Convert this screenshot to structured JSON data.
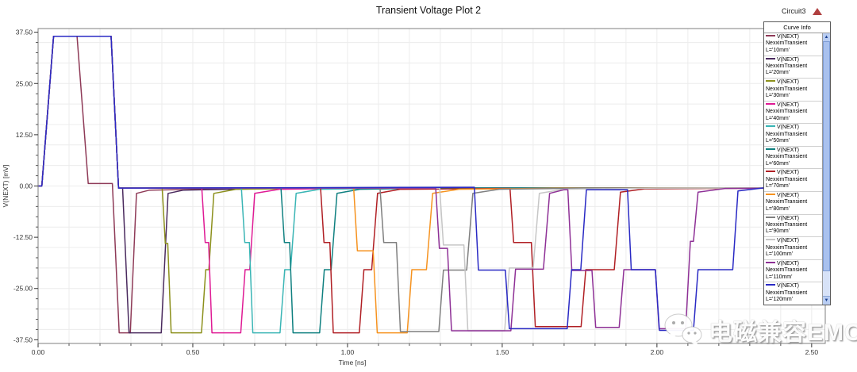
{
  "window": {
    "project_label": "Circuit3",
    "warning_icon": "red-triangle-icon"
  },
  "watermark": {
    "text": "电磁兼容EMC",
    "icon": "wechat-icon"
  },
  "legend": {
    "title": "Curve Info",
    "scrollbar": {
      "up_icon": "▲",
      "down_icon": "▼"
    }
  },
  "chart_data": {
    "type": "line",
    "title": "Transient Voltage Plot 2",
    "xlabel": "Time [ns]",
    "ylabel": "V(NEXT) [mV]",
    "xlim": [
      0,
      2.544
    ],
    "ylim": [
      -38.4,
      38.4
    ],
    "grid": true,
    "grid_x_step": 0.1,
    "grid_y_step": 5,
    "legend_position": "right-overlay",
    "x_ticks": [
      {
        "v": 0.0,
        "label": "0.00"
      },
      {
        "v": 0.5,
        "label": "0.50"
      },
      {
        "v": 1.0,
        "label": "1.00"
      },
      {
        "v": 1.5,
        "label": "1.50"
      },
      {
        "v": 2.0,
        "label": "2.00"
      },
      {
        "v": 2.5,
        "label": "2.50"
      }
    ],
    "x_minor_step": 0.1,
    "y_ticks": [
      {
        "v": 37.5,
        "label": "37.50"
      },
      {
        "v": 25.0,
        "label": "25.00"
      },
      {
        "v": 12.5,
        "label": "12.50"
      },
      {
        "v": 0.0,
        "label": "0.00"
      },
      {
        "v": -12.5,
        "label": "-12.50"
      },
      {
        "v": -25.0,
        "label": "-25.00"
      },
      {
        "v": -37.5,
        "label": "-37.50"
      }
    ],
    "y_minor_step": 2.5,
    "series": [
      {
        "name": "V(NEXT)",
        "solver": "NexximTransient",
        "length": "L='10mm'",
        "color": "#8e3a57",
        "points": [
          [
            0,
            0
          ],
          [
            0.012,
            0
          ],
          [
            0.05,
            36.5
          ],
          [
            0.126,
            36.5
          ],
          [
            0.162,
            0.6
          ],
          [
            0.24,
            0.6
          ],
          [
            0.262,
            -35.8
          ],
          [
            0.298,
            -35.8
          ],
          [
            0.318,
            -1.8
          ],
          [
            0.36,
            -1
          ],
          [
            0.75,
            -0.5
          ],
          [
            2.544,
            -0.45
          ]
        ]
      },
      {
        "name": "V(NEXT)",
        "solver": "NexximTransient",
        "length": "L='20mm'",
        "color": "#4a2a5e",
        "points": [
          [
            0,
            0
          ],
          [
            0.012,
            0
          ],
          [
            0.05,
            36.5
          ],
          [
            0.236,
            36.5
          ],
          [
            0.26,
            -0.5
          ],
          [
            0.273,
            -0.5
          ],
          [
            0.294,
            -35.8
          ],
          [
            0.398,
            -35.8
          ],
          [
            0.42,
            -1.8
          ],
          [
            0.47,
            -1
          ],
          [
            0.85,
            -0.5
          ],
          [
            2.544,
            -0.45
          ]
        ]
      },
      {
        "name": "V(NEXT)",
        "solver": "NexximTransient",
        "length": "L='30mm'",
        "color": "#8c901c",
        "points": [
          [
            0,
            0
          ],
          [
            0.012,
            0
          ],
          [
            0.05,
            36.5
          ],
          [
            0.236,
            36.5
          ],
          [
            0.26,
            -0.5
          ],
          [
            0.401,
            -0.5
          ],
          [
            0.411,
            -14
          ],
          [
            0.419,
            -14
          ],
          [
            0.43,
            -35.8
          ],
          [
            0.528,
            -35.8
          ],
          [
            0.542,
            -20.4
          ],
          [
            0.552,
            -20.4
          ],
          [
            0.568,
            -1.8
          ],
          [
            0.64,
            -0.8
          ],
          [
            1,
            -0.5
          ],
          [
            2.544,
            -0.45
          ]
        ]
      },
      {
        "name": "V(NEXT)",
        "solver": "NexximTransient",
        "length": "L='40mm'",
        "color": "#df1a94",
        "points": [
          [
            0,
            0
          ],
          [
            0.012,
            0
          ],
          [
            0.05,
            36.5
          ],
          [
            0.236,
            36.5
          ],
          [
            0.26,
            -0.5
          ],
          [
            0.529,
            -0.5
          ],
          [
            0.54,
            -13.8
          ],
          [
            0.551,
            -13.8
          ],
          [
            0.562,
            -35.8
          ],
          [
            0.655,
            -35.8
          ],
          [
            0.669,
            -20.4
          ],
          [
            0.684,
            -20.4
          ],
          [
            0.7,
            -1.8
          ],
          [
            0.78,
            -0.8
          ],
          [
            1.1,
            -0.5
          ],
          [
            2.544,
            -0.45
          ]
        ]
      },
      {
        "name": "V(NEXT)",
        "solver": "NexximTransient",
        "length": "L='50mm'",
        "color": "#3ab5b5",
        "points": [
          [
            0,
            0
          ],
          [
            0.012,
            0
          ],
          [
            0.05,
            36.5
          ],
          [
            0.236,
            36.5
          ],
          [
            0.26,
            -0.5
          ],
          [
            0.657,
            -0.5
          ],
          [
            0.668,
            -13.8
          ],
          [
            0.683,
            -13.8
          ],
          [
            0.694,
            -35.8
          ],
          [
            0.782,
            -35.8
          ],
          [
            0.797,
            -20.4
          ],
          [
            0.816,
            -20.4
          ],
          [
            0.834,
            -1.8
          ],
          [
            0.91,
            -0.8
          ],
          [
            1.2,
            -0.5
          ],
          [
            2.544,
            -0.45
          ]
        ]
      },
      {
        "name": "V(NEXT)",
        "solver": "NexximTransient",
        "length": "L='60mm'",
        "color": "#0f8080",
        "points": [
          [
            0,
            0
          ],
          [
            0.012,
            0
          ],
          [
            0.05,
            36.5
          ],
          [
            0.236,
            36.5
          ],
          [
            0.26,
            -0.5
          ],
          [
            0.785,
            -0.5
          ],
          [
            0.796,
            -13.8
          ],
          [
            0.813,
            -13.8
          ],
          [
            0.824,
            -35.8
          ],
          [
            0.91,
            -35.8
          ],
          [
            0.925,
            -20.4
          ],
          [
            0.947,
            -20.4
          ],
          [
            0.966,
            -1.8
          ],
          [
            1.04,
            -0.8
          ],
          [
            1.3,
            -0.5
          ],
          [
            2.544,
            -0.45
          ]
        ]
      },
      {
        "name": "V(NEXT)",
        "solver": "NexximTransient",
        "length": "L='70mm'",
        "color": "#b01f24",
        "points": [
          [
            0,
            0
          ],
          [
            0.012,
            0
          ],
          [
            0.05,
            36.5
          ],
          [
            0.236,
            36.5
          ],
          [
            0.26,
            -0.5
          ],
          [
            0.913,
            -0.5
          ],
          [
            0.924,
            -13.8
          ],
          [
            0.943,
            -13.8
          ],
          [
            0.954,
            -35.8
          ],
          [
            1.038,
            -35.8
          ],
          [
            1.053,
            -20.4
          ],
          [
            1.078,
            -20.4
          ],
          [
            1.097,
            -1.8
          ],
          [
            1.17,
            -0.8
          ],
          [
            1.525,
            -0.6
          ],
          [
            1.537,
            -13.8
          ],
          [
            1.594,
            -13.8
          ],
          [
            1.607,
            -34.3
          ],
          [
            1.755,
            -34.3
          ],
          [
            1.77,
            -20.4
          ],
          [
            1.862,
            -20.4
          ],
          [
            1.882,
            -1.5
          ],
          [
            1.96,
            -0.7
          ],
          [
            2.544,
            -0.45
          ]
        ]
      },
      {
        "name": "V(NEXT)",
        "solver": "NexximTransient",
        "length": "L='80mm'",
        "color": "#f6921e",
        "points": [
          [
            0,
            0
          ],
          [
            0.012,
            0
          ],
          [
            0.05,
            36.5
          ],
          [
            0.236,
            36.5
          ],
          [
            0.26,
            -0.5
          ],
          [
            1.02,
            -0.5
          ],
          [
            1.032,
            -15.8
          ],
          [
            1.083,
            -15.8
          ],
          [
            1.096,
            -35.8
          ],
          [
            1.193,
            -35.8
          ],
          [
            1.208,
            -20.4
          ],
          [
            1.255,
            -20.4
          ],
          [
            1.275,
            -1.8
          ],
          [
            1.36,
            -0.8
          ],
          [
            1.7,
            -0.5
          ],
          [
            2.544,
            -0.45
          ]
        ]
      },
      {
        "name": "V(NEXT)",
        "solver": "NexximTransient",
        "length": "L='90mm'",
        "color": "#7f7f7f",
        "points": [
          [
            0,
            0
          ],
          [
            0.012,
            0
          ],
          [
            0.05,
            36.5
          ],
          [
            0.236,
            36.5
          ],
          [
            0.26,
            -0.5
          ],
          [
            1.105,
            -0.5
          ],
          [
            1.117,
            -13.8
          ],
          [
            1.158,
            -13.8
          ],
          [
            1.171,
            -35.5
          ],
          [
            1.295,
            -35.5
          ],
          [
            1.31,
            -20.5
          ],
          [
            1.385,
            -20.5
          ],
          [
            1.405,
            -1.8
          ],
          [
            1.49,
            -0.8
          ],
          [
            1.8,
            -0.5
          ],
          [
            2.544,
            -0.45
          ]
        ]
      },
      {
        "name": "V(NEXT)",
        "solver": "NexximTransient",
        "length": "L='100mm'",
        "color": "#c6c6c6",
        "points": [
          [
            0,
            0
          ],
          [
            0.012,
            0
          ],
          [
            0.05,
            36.5
          ],
          [
            0.236,
            36.5
          ],
          [
            0.26,
            -0.5
          ],
          [
            1.298,
            -0.5
          ],
          [
            1.31,
            -14.4
          ],
          [
            1.376,
            -14.4
          ],
          [
            1.389,
            -35.3
          ],
          [
            1.508,
            -35.3
          ],
          [
            1.523,
            -20
          ],
          [
            1.6,
            -20
          ],
          [
            1.62,
            -1.8
          ],
          [
            1.7,
            -0.8
          ],
          [
            2,
            -0.5
          ],
          [
            2.544,
            -0.45
          ]
        ]
      },
      {
        "name": "V(NEXT)",
        "solver": "NexximTransient",
        "length": "L='110mm'",
        "color": "#8e3096",
        "points": [
          [
            0,
            0
          ],
          [
            0.012,
            0
          ],
          [
            0.05,
            36.5
          ],
          [
            0.236,
            36.5
          ],
          [
            0.26,
            -0.5
          ],
          [
            1.285,
            -0.5
          ],
          [
            1.297,
            -15.2
          ],
          [
            1.323,
            -15.2
          ],
          [
            1.336,
            -35.3
          ],
          [
            1.528,
            -35.3
          ],
          [
            1.543,
            -20.3
          ],
          [
            1.633,
            -20.3
          ],
          [
            1.653,
            -1.8
          ],
          [
            1.7,
            -0.9
          ],
          [
            1.712,
            -0.9
          ],
          [
            1.725,
            -20.6
          ],
          [
            1.79,
            -20.6
          ],
          [
            1.802,
            -34.5
          ],
          [
            1.878,
            -34.5
          ],
          [
            1.893,
            -20.4
          ],
          [
            1.995,
            -20.4
          ],
          [
            2.007,
            -34.8
          ],
          [
            2.093,
            -34.8
          ],
          [
            2.108,
            -13.5
          ],
          [
            2.118,
            -13.5
          ],
          [
            2.133,
            -1.5
          ],
          [
            2.22,
            -0.6
          ],
          [
            2.544,
            -0.45
          ]
        ]
      },
      {
        "name": "V(NEXT)",
        "solver": "NexximTransient",
        "length": "L='120mm'",
        "color": "#2929c4",
        "points": [
          [
            0,
            0
          ],
          [
            0.012,
            0
          ],
          [
            0.05,
            36.5
          ],
          [
            0.236,
            36.5
          ],
          [
            0.26,
            -0.5
          ],
          [
            1.41,
            -0.3
          ],
          [
            1.423,
            -20.5
          ],
          [
            1.51,
            -20.5
          ],
          [
            1.523,
            -34.8
          ],
          [
            1.71,
            -34.8
          ],
          [
            1.724,
            -20.4
          ],
          [
            1.754,
            -20.4
          ],
          [
            1.772,
            -0.9
          ],
          [
            1.905,
            -0.9
          ],
          [
            1.917,
            -20.4
          ],
          [
            1.995,
            -20.4
          ],
          [
            2.008,
            -35.2
          ],
          [
            2.118,
            -35.2
          ],
          [
            2.133,
            -20.4
          ],
          [
            2.245,
            -20.4
          ],
          [
            2.262,
            -1.2
          ],
          [
            2.35,
            -0.4
          ],
          [
            2.544,
            -0.3
          ]
        ]
      }
    ]
  }
}
